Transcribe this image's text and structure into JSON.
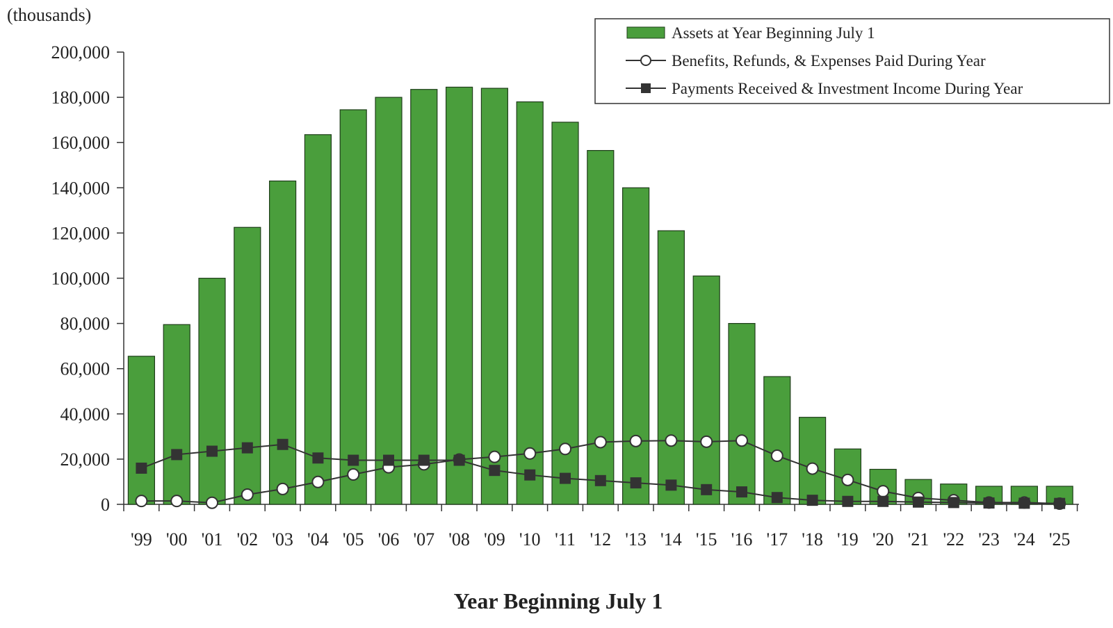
{
  "chart_data": {
    "type": "bar",
    "title": "",
    "unit_label": "(thousands)",
    "xlabel": "Year Beginning July 1",
    "ylabel": "",
    "ylim": [
      0,
      200000
    ],
    "yticks": [
      0,
      20000,
      40000,
      60000,
      80000,
      100000,
      120000,
      140000,
      160000,
      180000,
      200000
    ],
    "ytick_labels": [
      "0",
      "20,000",
      "40,000",
      "60,000",
      "80,000",
      "100,000",
      "120,000",
      "140,000",
      "160,000",
      "180,000",
      "200,000"
    ],
    "grid": false,
    "legend_position": "top-right",
    "categories": [
      "'99",
      "'00",
      "'01",
      "'02",
      "'03",
      "'04",
      "'05",
      "'06",
      "'07",
      "'08",
      "'09",
      "'10",
      "'11",
      "'12",
      "'13",
      "'14",
      "'15",
      "'16",
      "'17",
      "'18",
      "'19",
      "'20",
      "'21",
      "'22",
      "'23",
      "'24",
      "'25"
    ],
    "series": [
      {
        "name": "Assets at Year Beginning July 1",
        "type": "bar",
        "color": "#4a9e3c",
        "values": [
          65500,
          79500,
          100000,
          122500,
          143000,
          163500,
          174500,
          180000,
          183500,
          184500,
          184000,
          178000,
          169000,
          156500,
          140000,
          121000,
          101000,
          80000,
          56500,
          38500,
          24500,
          15500,
          11000,
          9000,
          8000,
          8000,
          8000
        ]
      },
      {
        "name": "Benefits, Refunds, & Expenses Paid During Year",
        "type": "line",
        "marker": "circle",
        "color": "#333333",
        "values": [
          1500,
          1500,
          700,
          4300,
          6800,
          9900,
          13200,
          16400,
          17700,
          19800,
          21000,
          22500,
          24500,
          27500,
          28000,
          28200,
          27700,
          28200,
          21500,
          15800,
          10800,
          5800,
          2800,
          1800,
          800,
          800,
          300
        ]
      },
      {
        "name": "Payments Received & Investment Income During Year",
        "type": "line",
        "marker": "square",
        "color": "#333333",
        "values": [
          16000,
          22000,
          23500,
          25000,
          26500,
          20500,
          19500,
          19500,
          19500,
          19500,
          15000,
          13000,
          11500,
          10500,
          9500,
          8500,
          6500,
          5500,
          3000,
          1800,
          1300,
          1300,
          1000,
          800,
          600,
          500,
          400
        ]
      }
    ]
  }
}
